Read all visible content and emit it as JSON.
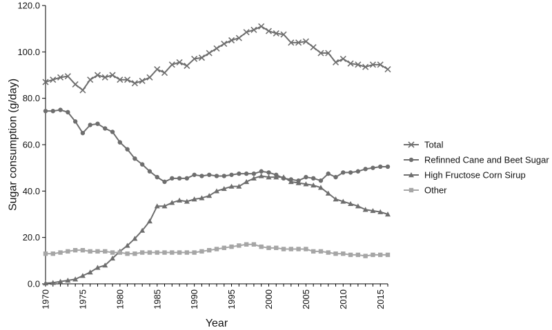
{
  "chart_data": {
    "type": "line",
    "xlabel": "Year",
    "ylabel": "Sugar consumption (g/day)",
    "xlim": [
      1970,
      2016
    ],
    "ylim": [
      0,
      120
    ],
    "yticks": [
      "0.0",
      "20.0",
      "40.0",
      "60.0",
      "80.0",
      "100.0",
      "120.0"
    ],
    "xticks": [
      "1970",
      "1975",
      "1980",
      "1985",
      "1990",
      "1995",
      "2000",
      "2005",
      "2010",
      "2015"
    ],
    "legend_position": "right",
    "x": [
      1970,
      1971,
      1972,
      1973,
      1974,
      1975,
      1976,
      1977,
      1978,
      1979,
      1980,
      1981,
      1982,
      1983,
      1984,
      1985,
      1986,
      1987,
      1988,
      1989,
      1990,
      1991,
      1992,
      1993,
      1994,
      1995,
      1996,
      1997,
      1998,
      1999,
      2000,
      2001,
      2002,
      2003,
      2004,
      2005,
      2006,
      2007,
      2008,
      2009,
      2010,
      2011,
      2012,
      2013,
      2014,
      2015,
      2016
    ],
    "series": [
      {
        "name": "Total",
        "marker": "x",
        "color": "#6e6e6e",
        "values": [
          87.0,
          88.0,
          89.0,
          89.5,
          86.0,
          83.5,
          88.0,
          90.0,
          89.0,
          90.0,
          88.0,
          88.0,
          86.5,
          87.5,
          89.0,
          92.5,
          91.0,
          94.5,
          95.5,
          94.0,
          97.0,
          97.5,
          99.5,
          101.5,
          103.5,
          105.0,
          106.0,
          108.5,
          109.5,
          111.0,
          109.0,
          108.0,
          107.5,
          104.0,
          104.0,
          104.5,
          102.0,
          99.5,
          99.5,
          95.5,
          97.0,
          95.0,
          94.5,
          93.5,
          94.5,
          94.5,
          92.5
        ]
      },
      {
        "name": "Refinned Cane and Beet Sugar",
        "marker": "circle",
        "color": "#6e6e6e",
        "values": [
          74.5,
          74.5,
          75.0,
          74.0,
          70.0,
          65.0,
          68.5,
          69.0,
          67.0,
          65.5,
          61.0,
          58.0,
          54.0,
          51.5,
          48.5,
          46.0,
          44.0,
          45.5,
          45.5,
          45.5,
          47.0,
          46.5,
          47.0,
          46.5,
          46.5,
          47.0,
          47.5,
          47.5,
          47.5,
          48.5,
          48.0,
          47.0,
          45.5,
          45.0,
          44.5,
          46.0,
          45.5,
          44.5,
          47.5,
          46.0,
          48.0,
          48.0,
          48.5,
          49.5,
          50.0,
          50.5,
          50.5
        ]
      },
      {
        "name": "High Fructose Corn Sirup",
        "marker": "triangle",
        "color": "#6e6e6e",
        "values": [
          0.3,
          0.5,
          1.0,
          1.5,
          2.0,
          3.5,
          5.0,
          7.0,
          8.0,
          11.0,
          14.0,
          16.5,
          19.5,
          23.0,
          27.0,
          33.5,
          33.5,
          35.0,
          36.0,
          35.5,
          36.5,
          37.0,
          38.0,
          40.0,
          41.0,
          42.0,
          42.0,
          44.0,
          45.5,
          46.5,
          46.0,
          46.0,
          46.0,
          44.0,
          43.5,
          43.0,
          42.5,
          41.5,
          39.0,
          36.5,
          35.5,
          34.5,
          33.5,
          32.0,
          31.5,
          31.0,
          30.0
        ]
      },
      {
        "name": "Other",
        "marker": "square",
        "color": "#a6a6a6",
        "values": [
          13.0,
          13.0,
          13.5,
          14.0,
          14.5,
          14.5,
          14.0,
          14.0,
          14.0,
          13.5,
          13.5,
          13.0,
          13.0,
          13.5,
          13.5,
          13.5,
          13.5,
          13.5,
          13.5,
          13.5,
          13.5,
          14.0,
          14.5,
          15.0,
          15.5,
          16.0,
          16.5,
          17.0,
          17.0,
          16.0,
          15.5,
          15.5,
          15.0,
          15.0,
          15.0,
          15.0,
          14.0,
          14.0,
          13.5,
          13.0,
          13.0,
          12.5,
          12.5,
          12.0,
          12.5,
          12.5,
          12.5
        ]
      }
    ]
  }
}
